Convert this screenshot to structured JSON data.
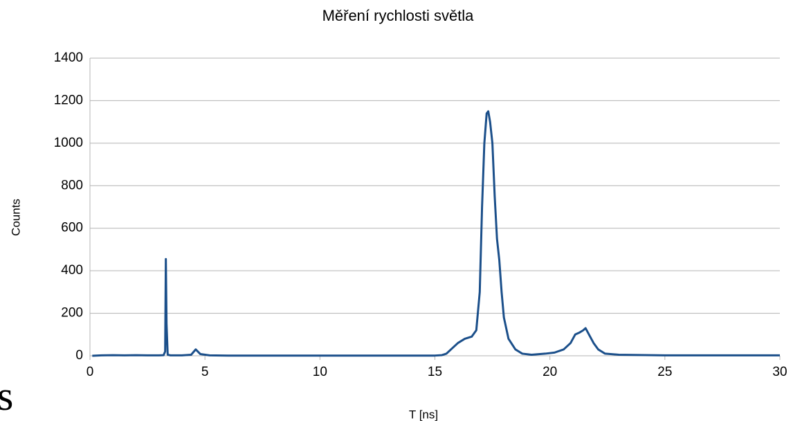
{
  "chart_data": {
    "type": "line",
    "title": "Měření rychlosti světla",
    "xlabel": "T [ns]",
    "ylabel": "Counts",
    "annotation": "s",
    "x": [
      0.1,
      0.5,
      1.0,
      1.5,
      2.0,
      2.5,
      3.0,
      3.2,
      3.27,
      3.3,
      3.33,
      3.38,
      3.5,
      4.0,
      4.4,
      4.6,
      4.8,
      5.2,
      6,
      8,
      10,
      12,
      14,
      15.0,
      15.3,
      15.5,
      15.8,
      16.0,
      16.3,
      16.6,
      16.8,
      16.95,
      17.05,
      17.15,
      17.25,
      17.32,
      17.4,
      17.5,
      17.6,
      17.7,
      17.8,
      17.9,
      18.0,
      18.2,
      18.5,
      18.8,
      19.2,
      19.8,
      20.2,
      20.6,
      20.9,
      21.1,
      21.3,
      21.45,
      21.55,
      21.7,
      21.9,
      22.1,
      22.4,
      23,
      25,
      27,
      30
    ],
    "series": [
      {
        "name": "Counts",
        "color": "#1b4f8a",
        "values": [
          0,
          2,
          3,
          2,
          3,
          2,
          2,
          3,
          20,
          455,
          150,
          5,
          2,
          2,
          5,
          30,
          8,
          2,
          1,
          1,
          1,
          1,
          1,
          1,
          3,
          10,
          40,
          60,
          80,
          90,
          120,
          300,
          700,
          1000,
          1140,
          1150,
          1100,
          1000,
          750,
          550,
          450,
          300,
          180,
          80,
          30,
          10,
          5,
          10,
          15,
          30,
          60,
          100,
          110,
          120,
          130,
          100,
          60,
          30,
          10,
          5,
          2,
          2,
          2
        ]
      }
    ],
    "xlim": [
      0,
      30
    ],
    "xticks": [
      0,
      5,
      10,
      15,
      20,
      25,
      30
    ],
    "ylim": [
      0,
      1400
    ],
    "yticks": [
      0,
      200,
      400,
      600,
      800,
      1000,
      1200,
      1400
    ],
    "grid": true
  }
}
